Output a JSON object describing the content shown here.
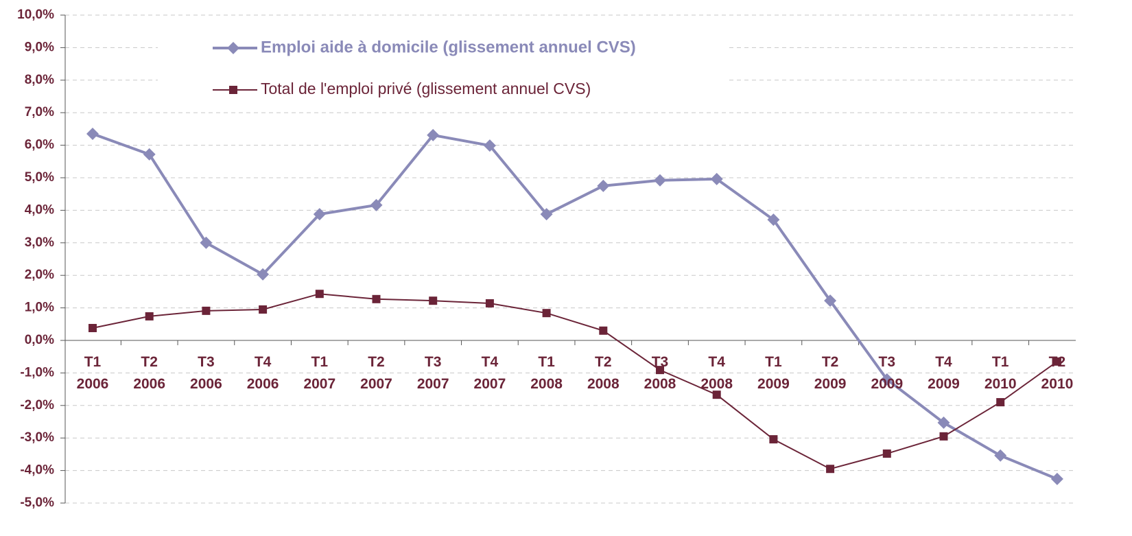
{
  "chart_data": {
    "type": "line",
    "categories": [
      "T1 2006",
      "T2 2006",
      "T3 2006",
      "T4 2006",
      "T1 2007",
      "T2 2007",
      "T3 2007",
      "T4 2007",
      "T1 2008",
      "T2 2008",
      "T3 2008",
      "T4 2008",
      "T1 2009",
      "T2 2009",
      "T3 2009",
      "T4 2009",
      "T1 2010",
      "T2 2010"
    ],
    "series": [
      {
        "name": "Emploi aide à domicile (glissement annuel CVS)",
        "color": "#8a8ab8",
        "marker": "diamond",
        "values": [
          6.35,
          5.72,
          3.0,
          2.03,
          3.88,
          4.16,
          6.31,
          5.99,
          3.88,
          4.75,
          4.92,
          4.96,
          3.71,
          1.22,
          -1.2,
          -2.53,
          -3.54,
          -4.26
        ]
      },
      {
        "name": "Total de l'emploi privé (glissement annuel CVS)",
        "color": "#6b2438",
        "marker": "square",
        "values": [
          0.38,
          0.74,
          0.91,
          0.95,
          1.43,
          1.27,
          1.22,
          1.14,
          0.84,
          0.3,
          -0.91,
          -1.67,
          -3.04,
          -3.95,
          -3.48,
          -2.95,
          -1.9,
          -0.65
        ]
      }
    ],
    "ylim": [
      -5,
      10
    ],
    "yticks": [
      {
        "value": 10,
        "label": "10,0%"
      },
      {
        "value": 9,
        "label": "9,0%"
      },
      {
        "value": 8,
        "label": "8,0%"
      },
      {
        "value": 7,
        "label": "7,0%"
      },
      {
        "value": 6,
        "label": "6,0%"
      },
      {
        "value": 5,
        "label": "5,0%"
      },
      {
        "value": 4,
        "label": "4,0%"
      },
      {
        "value": 3,
        "label": "3,0%"
      },
      {
        "value": 2,
        "label": "2,0%"
      },
      {
        "value": 1,
        "label": "1,0%"
      },
      {
        "value": 0,
        "label": "0,0%"
      },
      {
        "value": -1,
        "label": "-1,0%"
      },
      {
        "value": -2,
        "label": "-2,0%"
      },
      {
        "value": -3,
        "label": "-3,0%"
      },
      {
        "value": -4,
        "label": "-4,0%"
      },
      {
        "value": -5,
        "label": "-5,0%"
      }
    ],
    "grid": true
  }
}
